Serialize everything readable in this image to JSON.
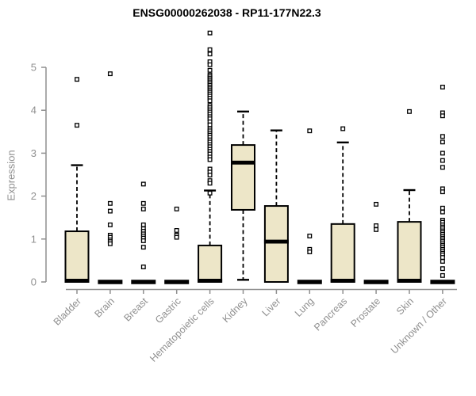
{
  "chart_data": {
    "type": "boxplot",
    "title": "ENSG00000262038 - RP11-177N22.3",
    "ylabel": "Expression",
    "xlabel": "",
    "ylim": [
      0,
      5.9
    ],
    "yticks": [
      0,
      1,
      2,
      3,
      4,
      5
    ],
    "grid": false,
    "x_tick_rotation": 45,
    "colors": {
      "box_fill": "#EDE6C8",
      "box_border": "#000000",
      "median": "#000000",
      "whisker": "#000000",
      "outlier": "#000000",
      "axis": "#8F8F8F",
      "tick_text": "#8F8F8F",
      "title_text": "#000000"
    },
    "categories": [
      "Bladder",
      "Brain",
      "Breast",
      "Gastric",
      "Hematopoietic cells",
      "Kidney",
      "Liver",
      "Lung",
      "Pancreas",
      "Prostate",
      "Skin",
      "Unknown / Other"
    ],
    "series": [
      {
        "name": "Bladder",
        "q1": 0,
        "median": 0.03,
        "q3": 1.18,
        "whisker_low": 0,
        "whisker_high": 2.72,
        "outliers": [
          4.72,
          3.65
        ]
      },
      {
        "name": "Brain",
        "q1": 0,
        "median": 0,
        "q3": 0,
        "whisker_low": 0,
        "whisker_high": 0,
        "outliers": [
          4.85,
          1.83,
          1.65,
          1.33,
          1.09,
          1.04,
          0.98,
          0.94,
          0.89
        ]
      },
      {
        "name": "Breast",
        "q1": 0,
        "median": 0,
        "q3": 0,
        "whisker_low": 0,
        "whisker_high": 0,
        "outliers": [
          2.28,
          1.83,
          1.7,
          1.33,
          1.24,
          1.18,
          1.12,
          1.07,
          1.02,
          0.96,
          0.81,
          0.35
        ]
      },
      {
        "name": "Gastric",
        "q1": 0,
        "median": 0,
        "q3": 0,
        "whisker_low": 0,
        "whisker_high": 0,
        "outliers": [
          1.7,
          1.2,
          1.09,
          1.04
        ]
      },
      {
        "name": "Hematopoietic cells",
        "q1": 0,
        "median": 0.03,
        "q3": 0.85,
        "whisker_low": 0,
        "whisker_high": 2.13,
        "outliers": [
          5.8,
          5.41,
          5.31,
          5.13,
          5.06,
          4.93,
          4.82,
          4.78,
          4.74,
          4.7,
          4.66,
          4.62,
          4.58,
          4.54,
          4.5,
          4.46,
          4.42,
          4.38,
          4.33,
          4.28,
          4.22,
          4.11,
          4.06,
          4.01,
          3.96,
          3.91,
          3.85,
          3.8,
          3.73,
          3.66,
          3.57,
          3.52,
          3.47,
          3.42,
          3.37,
          3.31,
          3.26,
          3.2,
          3.15,
          3.09,
          3.04,
          2.98,
          2.91,
          2.85,
          2.63,
          2.56,
          2.49,
          2.36,
          2.3,
          2.07
        ]
      },
      {
        "name": "Kidney",
        "q1": 1.68,
        "median": 2.78,
        "q3": 3.19,
        "whisker_low": 0.05,
        "whisker_high": 3.97,
        "outliers": []
      },
      {
        "name": "Liver",
        "q1": 0,
        "median": 0.94,
        "q3": 1.77,
        "whisker_low": 0,
        "whisker_high": 3.53,
        "outliers": []
      },
      {
        "name": "Lung",
        "q1": 0,
        "median": 0,
        "q3": 0,
        "whisker_low": 0,
        "whisker_high": 0,
        "outliers": [
          3.52,
          1.07,
          0.76,
          0.7
        ]
      },
      {
        "name": "Pancreas",
        "q1": 0,
        "median": 0.03,
        "q3": 1.35,
        "whisker_low": 0,
        "whisker_high": 3.25,
        "outliers": [
          3.57
        ]
      },
      {
        "name": "Prostate",
        "q1": 0,
        "median": 0,
        "q3": 0,
        "whisker_low": 0,
        "whisker_high": 0,
        "outliers": [
          1.81,
          1.31,
          1.22
        ]
      },
      {
        "name": "Skin",
        "q1": 0,
        "median": 0.03,
        "q3": 1.4,
        "whisker_low": 0,
        "whisker_high": 2.14,
        "outliers": [
          3.97
        ]
      },
      {
        "name": "Unknown / Other",
        "q1": 0,
        "median": 0,
        "q3": 0,
        "whisker_low": 0,
        "whisker_high": 0,
        "outliers": [
          4.54,
          3.94,
          3.87,
          3.39,
          3.26,
          3.0,
          2.83,
          2.67,
          2.17,
          2.1,
          1.72,
          1.63,
          1.44,
          1.39,
          1.33,
          1.28,
          1.24,
          1.19,
          1.15,
          1.11,
          1.06,
          1.02,
          0.98,
          0.94,
          0.89,
          0.85,
          0.81,
          0.76,
          0.72,
          0.67,
          0.63,
          0.57,
          0.48,
          0.31,
          0.15
        ]
      }
    ]
  }
}
